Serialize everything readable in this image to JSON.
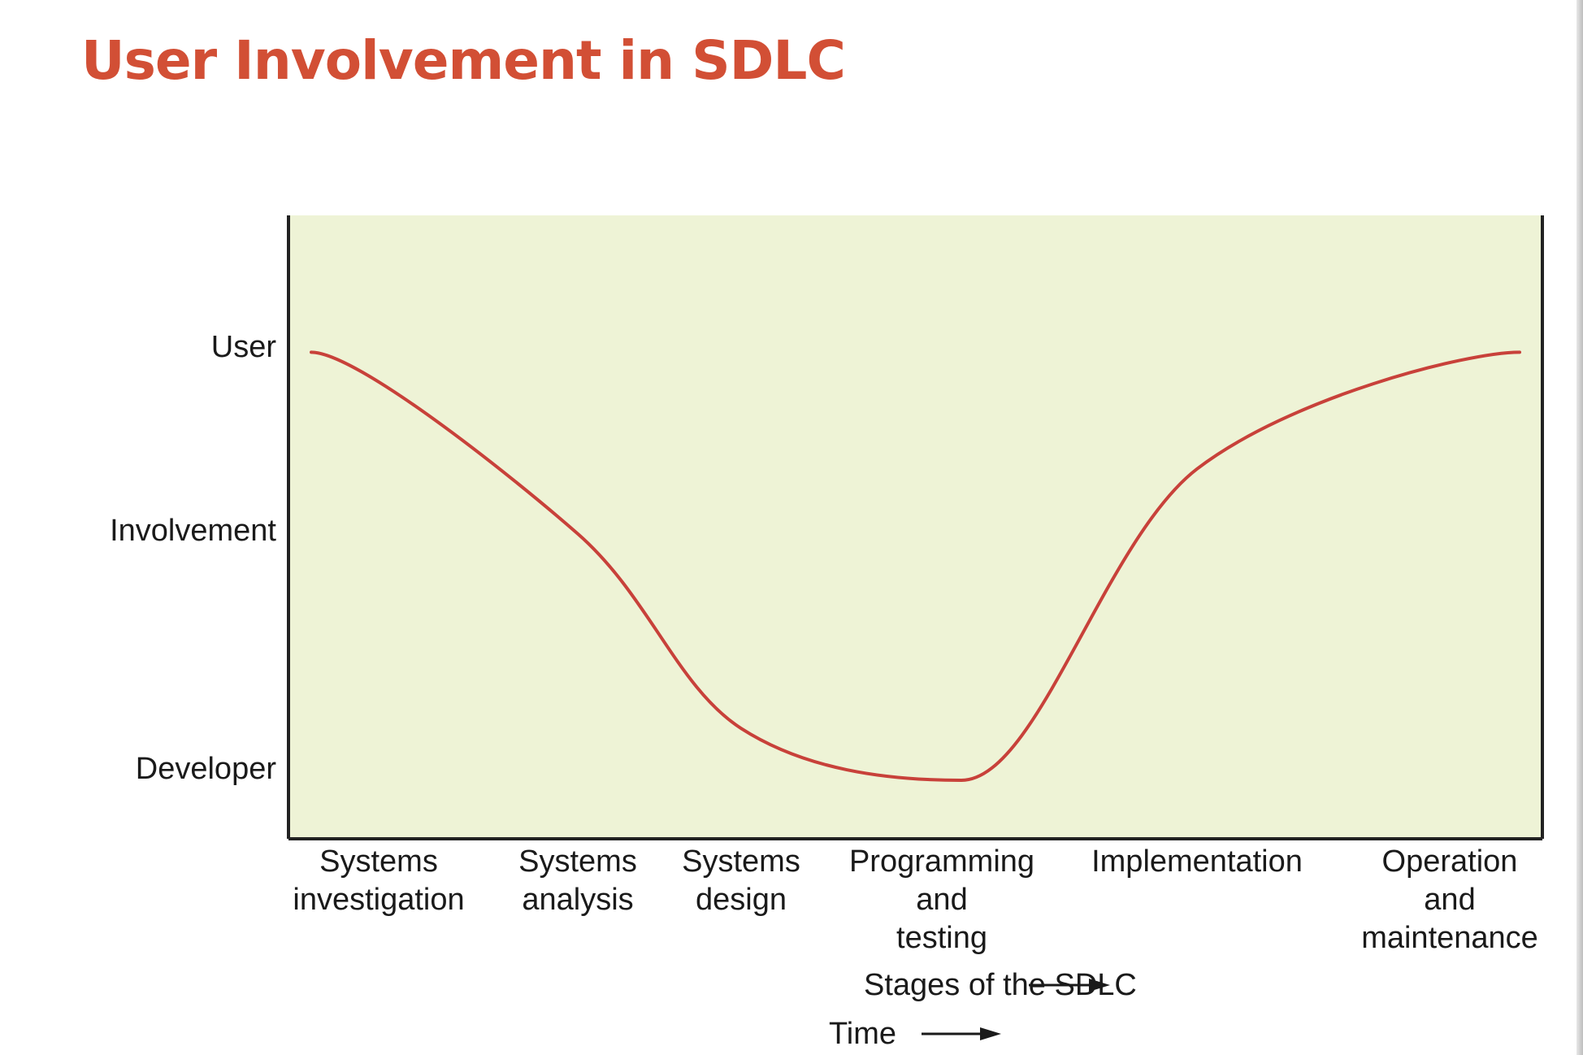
{
  "title": "User Involvement in SDLC",
  "chart_data": {
    "type": "line",
    "title": "User Involvement in SDLC",
    "xlabel": "Stages of the SDLC",
    "xlabel_secondary": "Time",
    "y_tick_labels": [
      "User",
      "Involvement",
      "Developer"
    ],
    "ylim": [
      0,
      1
    ],
    "y_meaning": "1 = User, 0 = Developer",
    "categories": [
      [
        "Systems",
        "investigation"
      ],
      [
        "Systems",
        "analysis"
      ],
      [
        "Systems",
        "design"
      ],
      [
        "Programming",
        "and",
        "testing"
      ],
      [
        "Implementation"
      ],
      [
        "Operation",
        "and",
        "maintenance"
      ]
    ],
    "series": [
      {
        "values": [
          0.99,
          0.57,
          0.12,
          0.0,
          0.72,
          0.99
        ]
      }
    ],
    "grid": false,
    "legend": "none",
    "colors": {
      "line": "#c8413a",
      "plot_background": "#eef3d6",
      "axis": "#222222",
      "title": "#d24f35"
    }
  }
}
